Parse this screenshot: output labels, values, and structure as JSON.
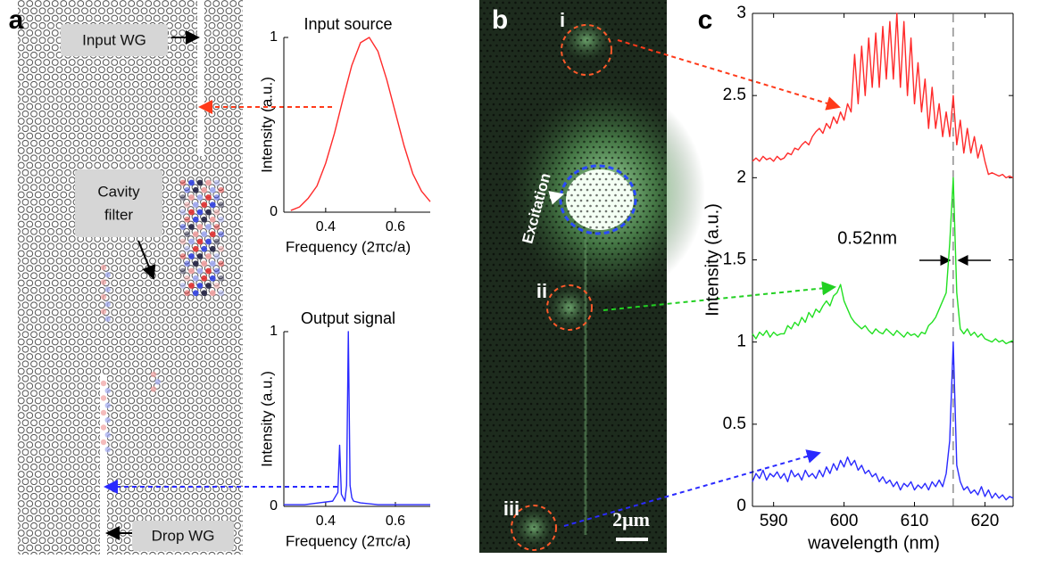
{
  "labels": {
    "panel_a": "a",
    "panel_b": "b",
    "panel_c": "c",
    "input_wg": "Input WG",
    "cavity_filter": [
      "Cavity",
      "filter"
    ],
    "drop_wg": "Drop WG",
    "excitation": "Excitation",
    "spot_i": "i",
    "spot_ii": "ii",
    "spot_iii": "iii",
    "scale_bar": "2μm",
    "linewidth": "0.52nm"
  },
  "chart_data": [
    {
      "type": "line",
      "title": "Input source",
      "xlabel": "Frequency (2πc/a)",
      "ylabel": "Intensity (a.u.)",
      "color": "#ff2a2a",
      "x": [
        0.3,
        0.325,
        0.35,
        0.375,
        0.4,
        0.425,
        0.45,
        0.475,
        0.5,
        0.525,
        0.55,
        0.575,
        0.6,
        0.625,
        0.65,
        0.675,
        0.7
      ],
      "values": [
        0.01,
        0.03,
        0.08,
        0.15,
        0.28,
        0.45,
        0.65,
        0.84,
        0.97,
        1.0,
        0.92,
        0.76,
        0.57,
        0.38,
        0.22,
        0.12,
        0.06
      ],
      "xlim": [
        0.28,
        0.7
      ],
      "ylim": [
        0,
        1
      ],
      "xticks": [
        0.4,
        0.6
      ],
      "yticks": [
        0,
        1
      ]
    },
    {
      "type": "line",
      "title": "Output signal",
      "xlabel": "Frequency (2πc/a)",
      "ylabel": "Intensity (a.u.)",
      "color": "#2a2aff",
      "x": [
        0.28,
        0.3,
        0.34,
        0.38,
        0.42,
        0.435,
        0.44,
        0.445,
        0.45,
        0.455,
        0.46,
        0.465,
        0.47,
        0.475,
        0.48,
        0.5,
        0.55,
        0.6,
        0.65,
        0.7
      ],
      "values": [
        0.01,
        0.01,
        0.01,
        0.02,
        0.03,
        0.08,
        0.35,
        0.07,
        0.05,
        0.03,
        0.12,
        1.0,
        0.12,
        0.05,
        0.03,
        0.02,
        0.01,
        0.01,
        0.01,
        0.01
      ],
      "xlim": [
        0.28,
        0.7
      ],
      "ylim": [
        0,
        1
      ],
      "xticks": [
        0.4,
        0.6
      ],
      "yticks": [
        0,
        1
      ]
    },
    {
      "type": "line",
      "xlabel": "wavelength (nm)",
      "ylabel": "Intensity (a.u.)",
      "reference_x": 615.5,
      "x": [
        587,
        587.5,
        588,
        588.5,
        589,
        589.5,
        590,
        590.5,
        591,
        591.5,
        592,
        592.5,
        593,
        593.5,
        594,
        594.5,
        595,
        595.5,
        596,
        596.5,
        597,
        597.5,
        598,
        598.5,
        599,
        599.5,
        600,
        600.5,
        601,
        601.5,
        602,
        602.5,
        603,
        603.5,
        604,
        604.5,
        605,
        605.5,
        606,
        606.5,
        607,
        607.5,
        608,
        608.5,
        609,
        609.5,
        610,
        610.5,
        611,
        611.5,
        612,
        612.5,
        613,
        613.5,
        614,
        614.5,
        615,
        615.5,
        616,
        616.5,
        617,
        617.5,
        618,
        618.5,
        619,
        619.5,
        620,
        620.5,
        621,
        621.5,
        622,
        622.5,
        623,
        623.5,
        624
      ],
      "series": [
        {
          "color": "#ff2a2a",
          "values": [
            2.1,
            2.12,
            2.1,
            2.13,
            2.11,
            2.12,
            2.1,
            2.13,
            2.11,
            2.12,
            2.15,
            2.14,
            2.18,
            2.17,
            2.2,
            2.22,
            2.2,
            2.25,
            2.28,
            2.3,
            2.27,
            2.33,
            2.3,
            2.37,
            2.33,
            2.4,
            2.35,
            2.45,
            2.4,
            2.75,
            2.45,
            2.8,
            2.5,
            2.85,
            2.55,
            2.88,
            2.55,
            2.92,
            2.6,
            2.95,
            2.6,
            3.0,
            2.55,
            2.95,
            2.5,
            2.85,
            2.45,
            2.7,
            2.4,
            2.6,
            2.3,
            2.55,
            2.3,
            2.45,
            2.25,
            2.4,
            2.25,
            2.5,
            2.2,
            2.35,
            2.15,
            2.3,
            2.15,
            2.25,
            2.12,
            2.2,
            2.1,
            2.02,
            2.03,
            2.02,
            2.01,
            2.02,
            2.0,
            2.01,
            2.0
          ]
        },
        {
          "color": "#22e022",
          "values": [
            1.05,
            1.02,
            1.06,
            1.04,
            1.07,
            1.03,
            1.06,
            1.04,
            1.05,
            1.05,
            1.1,
            1.08,
            1.12,
            1.1,
            1.15,
            1.12,
            1.18,
            1.15,
            1.2,
            1.18,
            1.22,
            1.25,
            1.22,
            1.28,
            1.3,
            1.35,
            1.25,
            1.2,
            1.15,
            1.12,
            1.1,
            1.08,
            1.1,
            1.07,
            1.05,
            1.08,
            1.06,
            1.05,
            1.08,
            1.06,
            1.04,
            1.07,
            1.05,
            1.03,
            1.06,
            1.04,
            1.05,
            1.03,
            1.06,
            1.05,
            1.1,
            1.12,
            1.15,
            1.2,
            1.25,
            1.3,
            1.6,
            2.0,
            1.3,
            1.08,
            1.05,
            1.08,
            1.04,
            1.06,
            1.03,
            1.05,
            1.02,
            1.01,
            1.0,
            1.02,
            1.0,
            1.01,
            0.99,
            1.0,
            1.01
          ]
        },
        {
          "color": "#2a2aff",
          "values": [
            0.15,
            0.2,
            0.17,
            0.22,
            0.16,
            0.2,
            0.18,
            0.21,
            0.17,
            0.2,
            0.15,
            0.22,
            0.18,
            0.2,
            0.16,
            0.22,
            0.18,
            0.2,
            0.17,
            0.22,
            0.18,
            0.24,
            0.2,
            0.26,
            0.22,
            0.28,
            0.24,
            0.3,
            0.25,
            0.28,
            0.22,
            0.25,
            0.2,
            0.22,
            0.18,
            0.2,
            0.15,
            0.18,
            0.14,
            0.16,
            0.12,
            0.15,
            0.1,
            0.14,
            0.12,
            0.15,
            0.1,
            0.13,
            0.11,
            0.14,
            0.1,
            0.15,
            0.12,
            0.16,
            0.12,
            0.2,
            0.4,
            1.0,
            0.25,
            0.15,
            0.1,
            0.12,
            0.08,
            0.1,
            0.07,
            0.12,
            0.06,
            0.1,
            0.05,
            0.08,
            0.05,
            0.07,
            0.04,
            0.06,
            0.05
          ]
        }
      ],
      "xlim": [
        587,
        624
      ],
      "ylim": [
        0,
        3
      ],
      "xticks": [
        590,
        600,
        610,
        620
      ],
      "yticks": [
        0,
        0.5,
        1,
        1.5,
        2,
        2.5,
        3
      ]
    }
  ]
}
